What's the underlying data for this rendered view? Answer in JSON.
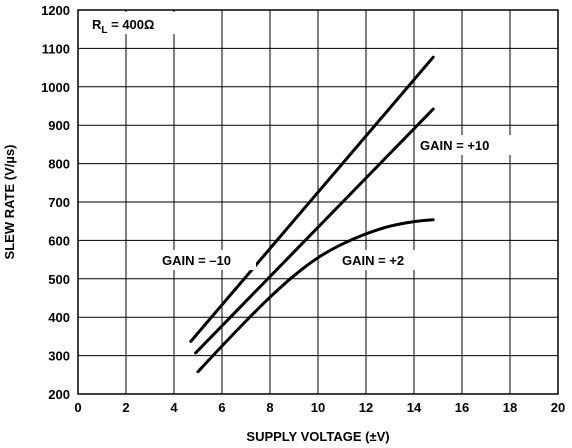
{
  "chart_data": {
    "type": "line",
    "title": "",
    "xlabel": "SUPPLY VOLTAGE (±V)",
    "ylabel": "SLEW RATE (V/µs)",
    "xlim": [
      0,
      20
    ],
    "ylim": [
      200,
      1200
    ],
    "x_ticks": [
      "0",
      "2",
      "4",
      "6",
      "8",
      "10",
      "12",
      "14",
      "16",
      "18",
      "20"
    ],
    "y_ticks": [
      "200",
      "300",
      "400",
      "500",
      "600",
      "700",
      "800",
      "900",
      "1000",
      "1100",
      "1200"
    ],
    "grid": true,
    "condition": {
      "main": "R",
      "sub": "L",
      "rest": " = 400Ω"
    },
    "series": [
      {
        "name": "GAIN = –10",
        "points": [
          [
            4.7,
            337
          ],
          [
            14.8,
            1077
          ]
        ]
      },
      {
        "name": "GAIN = +10",
        "points": [
          [
            4.9,
            307
          ],
          [
            14.8,
            942
          ]
        ]
      },
      {
        "name": "GAIN = +2",
        "points": [
          [
            5.0,
            258
          ],
          [
            6.0,
            325
          ],
          [
            7.0,
            390
          ],
          [
            8.0,
            452
          ],
          [
            9.0,
            508
          ],
          [
            10.0,
            555
          ],
          [
            11.0,
            590
          ],
          [
            12.0,
            617
          ],
          [
            13.0,
            637
          ],
          [
            14.0,
            649
          ],
          [
            14.8,
            654
          ]
        ]
      }
    ]
  }
}
